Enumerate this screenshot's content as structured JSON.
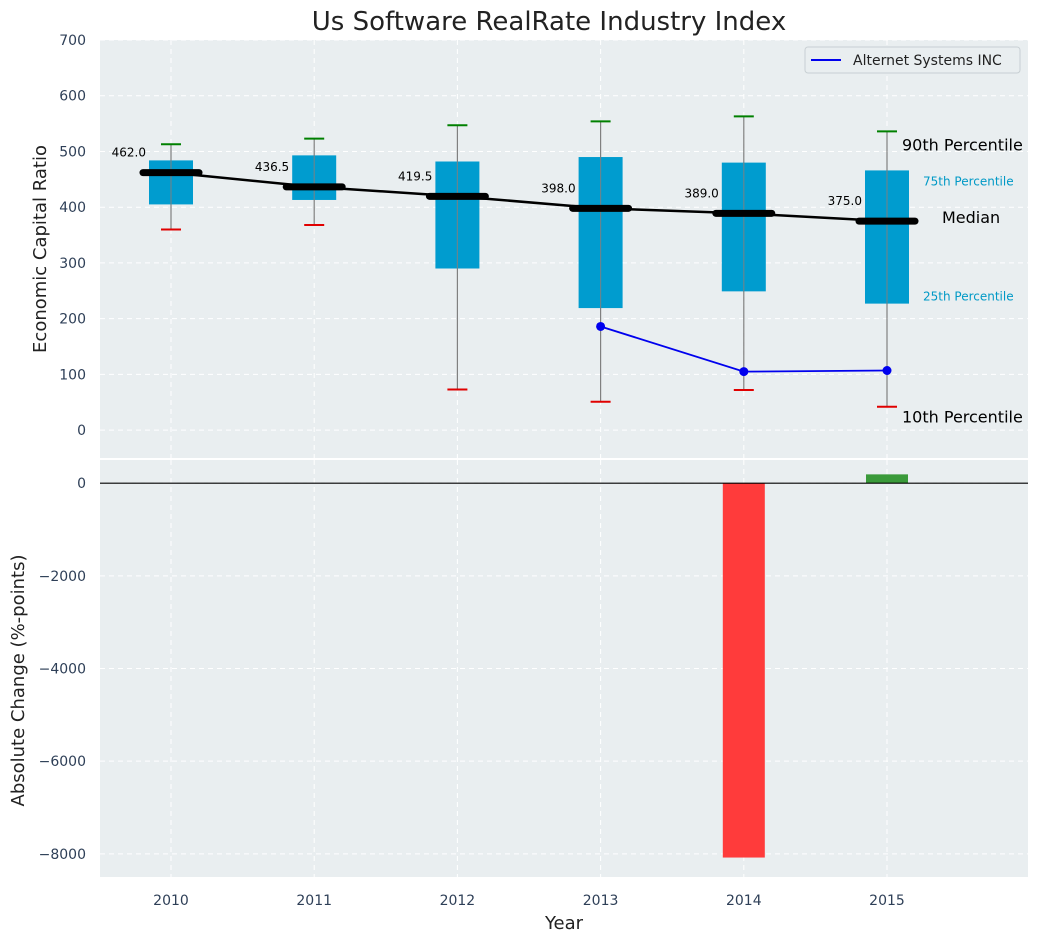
{
  "chart_data": [
    {
      "type": "box",
      "title": "Us Software RealRate Industry Index",
      "ylabel": "Economic Capital Ratio",
      "ylim": [
        -50,
        700
      ],
      "yticks": [
        0,
        100,
        200,
        300,
        400,
        500,
        600,
        700
      ],
      "categories": [
        "2010",
        "2011",
        "2012",
        "2013",
        "2014",
        "2015"
      ],
      "percentiles": {
        "p10": [
          360,
          368,
          73,
          51,
          72,
          42
        ],
        "p25": [
          405,
          413,
          290,
          219,
          249,
          227
        ],
        "median": [
          462.0,
          436.5,
          419.5,
          398.0,
          389.0,
          375.0
        ],
        "p75": [
          484,
          493,
          482,
          490,
          480,
          466
        ],
        "p90": [
          513,
          523,
          547,
          554,
          563,
          536
        ]
      },
      "median_labels": [
        "462.0",
        "436.5",
        "419.5",
        "398.0",
        "389.0",
        "375.0"
      ],
      "percentile_annotations": {
        "p90": "90th Percentile",
        "p75": "75th Percentile",
        "median": "Median",
        "p25": "25th Percentile",
        "p10": "10th Percentile"
      },
      "series": [
        {
          "name": "Alternet Systems INC",
          "x": [
            "2013",
            "2014",
            "2015"
          ],
          "values": [
            186,
            105,
            107
          ]
        }
      ],
      "legend": "top-right",
      "grid": true
    },
    {
      "type": "bar",
      "xlabel": "Year",
      "ylabel": "Absolute Change (%-points)",
      "ylim": [
        -8500,
        500
      ],
      "yticks": [
        0,
        -2000,
        -4000,
        -6000,
        -8000
      ],
      "ytick_labels": [
        "0",
        "−2000",
        "−4000",
        "−6000",
        "−8000"
      ],
      "categories": [
        "2010",
        "2011",
        "2012",
        "2013",
        "2014",
        "2015"
      ],
      "values": [
        null,
        null,
        null,
        null,
        -8080,
        190
      ],
      "grid": true
    }
  ],
  "colors": {
    "background": "#e9eef0",
    "box": "#009ccf",
    "median_line": "#000000",
    "p90_cap": "#008000",
    "p10_cap": "#e00000",
    "company_line": "#0000ee",
    "negative_bar": "#ff3b3b",
    "positive_bar": "#3a9a3a",
    "whisker": "#808080",
    "p75_p25_label": "#0099c6"
  }
}
